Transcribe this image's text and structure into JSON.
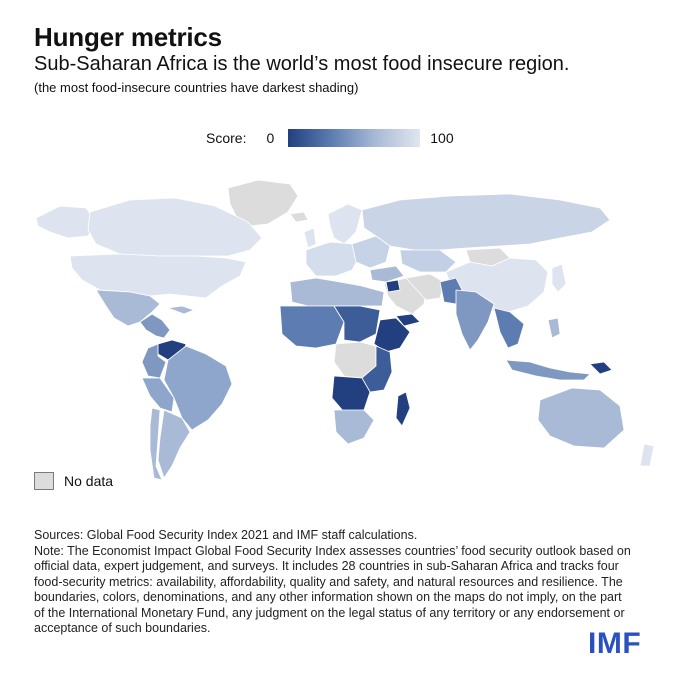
{
  "header": {
    "title": "Hunger metrics",
    "subtitle": "Sub-Saharan Africa is the world’s most food insecure region.",
    "note": "(the most food-insecure countries have darkest shading)"
  },
  "legend": {
    "label": "Score:",
    "min": "0",
    "max": "100",
    "color_low": "#22407f",
    "color_high": "#dfe6f1"
  },
  "no_data": {
    "label": "No data",
    "color": "#dcdcdc"
  },
  "footer": {
    "sources": "Sources: Global Food Security Index 2021 and IMF staff calculations.",
    "note": "Note: The Economist Impact Global Food Security Index assesses countries’ food security outlook based on official data, expert judgement, and surveys. It includes 28 countries in sub-Saharan Africa and tracks four food-security metrics: availability, affordability, quality and safety, and natural resources and resilience. The boundaries, colors, denominations, and any other information shown on the maps do not imply, on the part of the International Monetary Fund, any judgment on the legal status of any territory or any endorsement or acceptance of such boundaries."
  },
  "logo": {
    "text": "IMF",
    "color": "#2a52be"
  }
}
